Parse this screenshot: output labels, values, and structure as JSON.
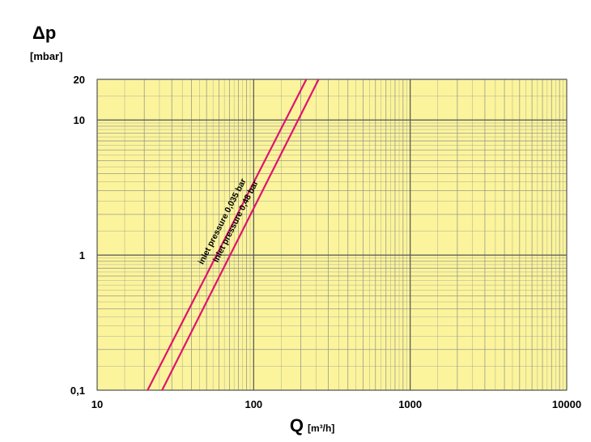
{
  "chart_data": {
    "type": "line",
    "y_label": "Δp",
    "y_unit": "[mbar]",
    "x_label": "Q",
    "x_unit": "[m³/h]",
    "log_x": true,
    "log_y": true,
    "grid": true,
    "background": "#fbf49c",
    "xlim": [
      10,
      10000
    ],
    "xticks": [
      10,
      100,
      1000,
      10000
    ],
    "ylim": [
      0.1,
      20
    ],
    "yticks": [
      {
        "value": 0.1,
        "label": "0,1"
      },
      1,
      10,
      20
    ],
    "series": [
      {
        "name": "inlet pressure 0,035 bar",
        "color": "#e0126e",
        "x": [
          21,
          217
        ],
        "values": [
          0.1,
          20
        ]
      },
      {
        "name": "inlet pressure 0,48 bar",
        "color": "#e0126e",
        "x": [
          26,
          260
        ],
        "values": [
          0.1,
          20
        ]
      }
    ]
  }
}
